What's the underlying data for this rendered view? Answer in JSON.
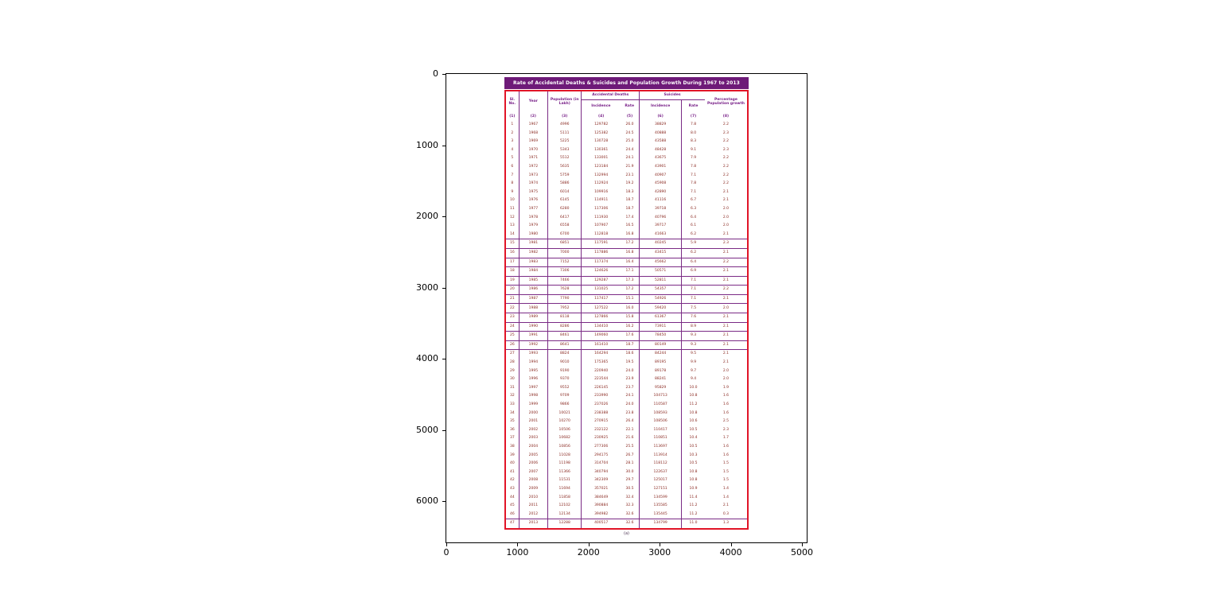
{
  "figure": {
    "x_axis_ticks": [
      "0",
      "1000",
      "2000",
      "3000",
      "4000",
      "5000"
    ],
    "y_axis_ticks": [
      "0",
      "1000",
      "2000",
      "3000",
      "4000",
      "5000",
      "6000"
    ]
  },
  "chart_data": {
    "type": "table",
    "title": "Rate of Accidental Deaths & Suicides and Population Growth During 1967 to 2013",
    "caption": "(a)",
    "colors": {
      "title_bar": "#6e1a78",
      "outer_border": "#e11427",
      "grid_lines": "#7a2a85",
      "header_text": "#771e87",
      "data_text": "#8a2a22"
    },
    "x_axis": {
      "ticks": [
        0,
        1000,
        2000,
        3000,
        4000,
        5000
      ]
    },
    "y_axis": {
      "ticks": [
        0,
        1000,
        2000,
        3000,
        4000,
        5000,
        6000
      ]
    },
    "header": {
      "sl_no": "Sl. No.",
      "year": "Year",
      "population": "Population (in Lakh)",
      "accidental_deaths": "Accidental Deaths",
      "suicides": "Suicides",
      "incidence": "Incidence",
      "rate": "Rate",
      "percentage_growth": "Percentage Population growth",
      "col_numbers": [
        "(1)",
        "(2)",
        "(3)",
        "(4)",
        "(5)",
        "(6)",
        "(7)",
        "(8)"
      ]
    },
    "columns": [
      "Sl. No.",
      "Year",
      "Population (in Lakh)",
      "Accidental Deaths - Incidence",
      "Accidental Deaths - Rate",
      "Suicides - Incidence",
      "Suicides - Rate",
      "Percentage Population growth"
    ],
    "rows": [
      [
        "1",
        "1967",
        "4996",
        "129782",
        "26.0",
        "38829",
        "7.8",
        "2.2"
      ],
      [
        "2",
        "1968",
        "5111",
        "125382",
        "24.5",
        "40888",
        "8.0",
        "2.3"
      ],
      [
        "3",
        "1969",
        "5225",
        "130728",
        "25.0",
        "43588",
        "8.3",
        "2.2"
      ],
      [
        "4",
        "1970",
        "5343",
        "130361",
        "24.4",
        "48428",
        "9.1",
        "2.3"
      ],
      [
        "5",
        "1971",
        "5512",
        "133001",
        "24.1",
        "43675",
        "7.9",
        "2.2"
      ],
      [
        "6",
        "1972",
        "5635",
        "123184",
        "21.9",
        "43901",
        "7.8",
        "2.2"
      ],
      [
        "7",
        "1973",
        "5759",
        "132994",
        "23.1",
        "40907",
        "7.1",
        "2.2"
      ],
      [
        "8",
        "1974",
        "5886",
        "112924",
        "19.2",
        "45908",
        "7.8",
        "2.2"
      ],
      [
        "9",
        "1975",
        "6014",
        "109916",
        "18.3",
        "42890",
        "7.1",
        "2.1"
      ],
      [
        "10",
        "1976",
        "6145",
        "114911",
        "18.7",
        "41116",
        "6.7",
        "2.1"
      ],
      [
        "11",
        "1977",
        "6280",
        "117306",
        "18.7",
        "39718",
        "6.3",
        "2.0"
      ],
      [
        "12",
        "1978",
        "6417",
        "111930",
        "17.4",
        "40796",
        "6.4",
        "2.0"
      ],
      [
        "13",
        "1979",
        "6558",
        "107907",
        "16.5",
        "39717",
        "6.1",
        "2.0"
      ],
      [
        "14",
        "1980",
        "6700",
        "112818",
        "16.8",
        "41663",
        "6.2",
        "2.1"
      ],
      [
        "15",
        "1981",
        "6851",
        "117591",
        "17.2",
        "40245",
        "5.9",
        "2.3"
      ],
      [
        "16",
        "1982",
        "7000",
        "117886",
        "16.8",
        "43415",
        "6.2",
        "2.1"
      ],
      [
        "17",
        "1983",
        "7152",
        "117374",
        "16.4",
        "45662",
        "6.4",
        "2.2"
      ],
      [
        "18",
        "1984",
        "7306",
        "124626",
        "17.1",
        "50571",
        "6.9",
        "2.1"
      ],
      [
        "19",
        "1985",
        "7466",
        "129287",
        "17.3",
        "52811",
        "7.1",
        "2.1"
      ],
      [
        "20",
        "1986",
        "7628",
        "131025",
        "17.2",
        "54357",
        "7.1",
        "2.2"
      ],
      [
        "21",
        "1987",
        "7790",
        "117417",
        "15.1",
        "54926",
        "7.1",
        "2.1"
      ],
      [
        "22",
        "1988",
        "7952",
        "127522",
        "16.0",
        "59420",
        "7.5",
        "2.0"
      ],
      [
        "23",
        "1989",
        "8118",
        "127866",
        "15.8",
        "61367",
        "7.6",
        "2.1"
      ],
      [
        "24",
        "1990",
        "8286",
        "134410",
        "16.2",
        "73911",
        "8.9",
        "2.1"
      ],
      [
        "25",
        "1991",
        "8461",
        "149060",
        "17.6",
        "78450",
        "9.3",
        "2.1"
      ],
      [
        "26",
        "1992",
        "8641",
        "161410",
        "18.7",
        "80149",
        "9.3",
        "2.1"
      ],
      [
        "27",
        "1993",
        "8824",
        "164294",
        "18.6",
        "84244",
        "9.5",
        "2.1"
      ],
      [
        "28",
        "1994",
        "9010",
        "175365",
        "19.5",
        "89195",
        "9.9",
        "2.1"
      ],
      [
        "29",
        "1995",
        "9190",
        "220940",
        "24.0",
        "89178",
        "9.7",
        "2.0"
      ],
      [
        "30",
        "1996",
        "9370",
        "223544",
        "23.9",
        "88241",
        "9.4",
        "2.0"
      ],
      [
        "31",
        "1997",
        "9552",
        "226145",
        "23.7",
        "95829",
        "10.0",
        "1.9"
      ],
      [
        "32",
        "1998",
        "9709",
        "233990",
        "24.1",
        "104713",
        "10.8",
        "1.6"
      ],
      [
        "33",
        "1999",
        "9866",
        "237026",
        "24.0",
        "110587",
        "11.2",
        "1.6"
      ],
      [
        "34",
        "2000",
        "10021",
        "238388",
        "23.8",
        "108593",
        "10.8",
        "1.6"
      ],
      [
        "35",
        "2001",
        "10270",
        "270915",
        "26.4",
        "108506",
        "10.6",
        "2.5"
      ],
      [
        "36",
        "2002",
        "10506",
        "232122",
        "22.1",
        "110417",
        "10.5",
        "2.3"
      ],
      [
        "37",
        "2003",
        "10682",
        "230925",
        "21.6",
        "110851",
        "10.4",
        "1.7"
      ],
      [
        "38",
        "2004",
        "10856",
        "277306",
        "25.5",
        "113697",
        "10.5",
        "1.6"
      ],
      [
        "39",
        "2005",
        "11028",
        "294175",
        "26.7",
        "113914",
        "10.3",
        "1.6"
      ],
      [
        "40",
        "2006",
        "11198",
        "314704",
        "28.1",
        "118112",
        "10.5",
        "1.5"
      ],
      [
        "41",
        "2007",
        "11366",
        "340794",
        "30.0",
        "122637",
        "10.8",
        "1.5"
      ],
      [
        "42",
        "2008",
        "11531",
        "342309",
        "29.7",
        "125017",
        "10.8",
        "1.5"
      ],
      [
        "43",
        "2009",
        "11694",
        "357021",
        "30.5",
        "127151",
        "10.9",
        "1.4"
      ],
      [
        "44",
        "2010",
        "11858",
        "384649",
        "32.4",
        "134599",
        "11.4",
        "1.4"
      ],
      [
        "45",
        "2011",
        "12102",
        "390884",
        "32.3",
        "135585",
        "11.2",
        "2.1"
      ],
      [
        "46",
        "2012",
        "12134",
        "394982",
        "32.6",
        "135445",
        "11.2",
        "0.3"
      ],
      [
        "47",
        "2013",
        "12288",
        "400517",
        "32.6",
        "134799",
        "11.0",
        "1.3"
      ]
    ]
  }
}
